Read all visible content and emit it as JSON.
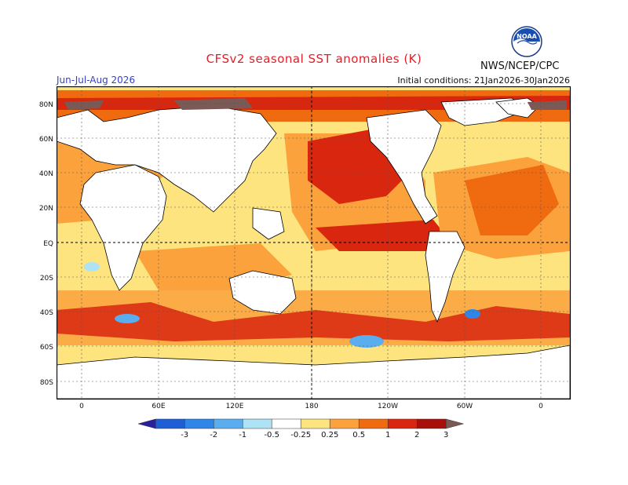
{
  "header": {
    "title": "CFSv2 seasonal SST anomalies (K)",
    "agency": "NWS/NCEP/CPC",
    "period": "Jun-Jul-Aug 2026",
    "initial_conditions": "Initial conditions: 21Jan2026-30Jan2026",
    "logo_text": "NOAA"
  },
  "axes": {
    "lat_labels": [
      "80N",
      "60N",
      "40N",
      "20N",
      "EQ",
      "20S",
      "40S",
      "60S",
      "80S"
    ],
    "lon_labels": [
      "0",
      "60E",
      "120E",
      "180",
      "120W",
      "60W",
      "0"
    ]
  },
  "legend": {
    "labels": [
      "-3",
      "-2",
      "-1",
      "-0.5",
      "-0.25",
      "0.25",
      "0.5",
      "1",
      "2",
      "3"
    ],
    "colors": [
      "#2b1fa0",
      "#1f5fd6",
      "#2f86e8",
      "#5aaef0",
      "#aee3f5",
      "#ffffff",
      "#fde47e",
      "#fca23c",
      "#f06a10",
      "#d8260f",
      "#a80e0a",
      "#7b5a55"
    ]
  },
  "colors": {
    "ocean_warm_weak": "#fde47e",
    "ocean_warm": "#fca23c",
    "ocean_hot": "#f06a10",
    "ocean_very_hot": "#d8260f",
    "ocean_extreme": "#a80e0a",
    "ocean_cool": "#5aaef0",
    "land": "#ffffff",
    "title": "#e0202a",
    "period": "#3340cc"
  }
}
